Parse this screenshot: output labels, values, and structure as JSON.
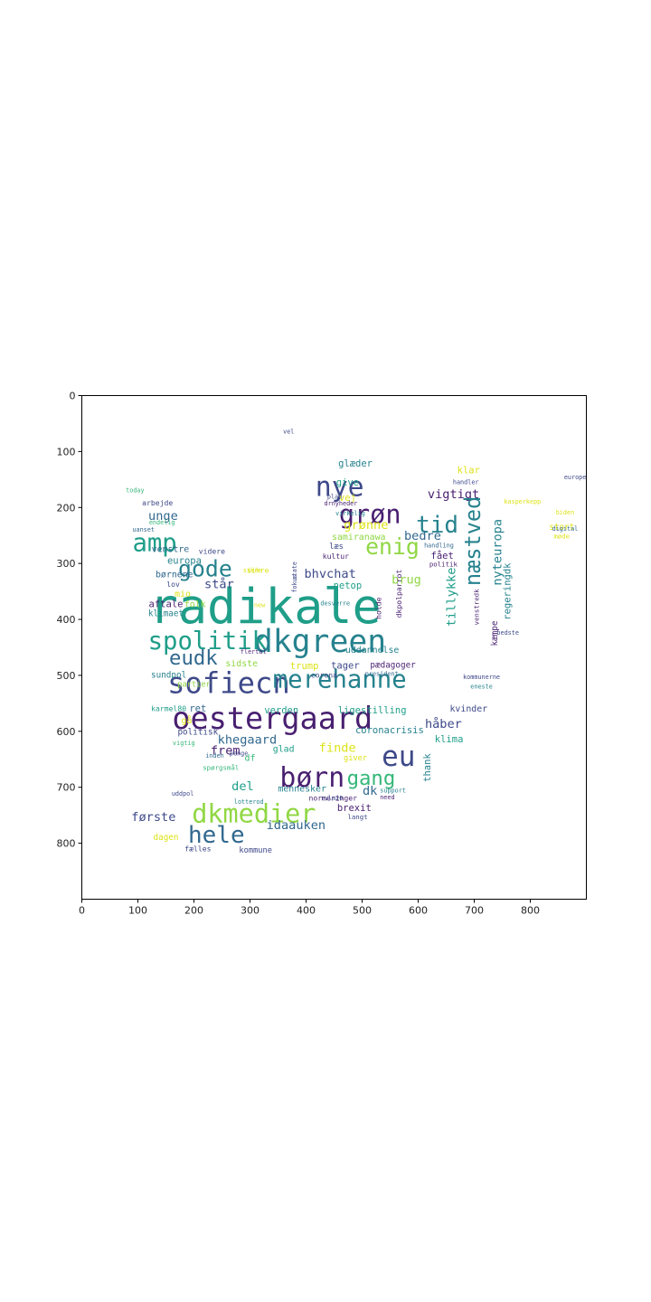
{
  "axes": {
    "x_ticks": [
      "0",
      "100",
      "200",
      "300",
      "400",
      "500",
      "600",
      "700",
      "800"
    ],
    "y_ticks": [
      "0",
      "100",
      "200",
      "300",
      "400",
      "500",
      "600",
      "700",
      "800"
    ],
    "xlim": [
      0,
      900
    ],
    "ylim": [
      900,
      0
    ]
  },
  "colors": {
    "purple": "#481f70",
    "indigo": "#3e4989",
    "blue": "#31688e",
    "teal": "#26828e",
    "green": "#1f9e89",
    "lime": "#35b779",
    "yellowgreen": "#90d743",
    "yellow": "#dde318"
  },
  "words": [
    {
      "t": "radikale",
      "x": 327,
      "y": 383,
      "s": 86,
      "c": "green"
    },
    {
      "t": "dkgreen",
      "x": 425,
      "y": 442,
      "s": 56,
      "c": "teal"
    },
    {
      "t": "oestergaard",
      "x": 340,
      "y": 580,
      "s": 54,
      "c": "purple"
    },
    {
      "t": "sofiecn",
      "x": 262,
      "y": 517,
      "s": 52,
      "c": "indigo"
    },
    {
      "t": "merehanne",
      "x": 460,
      "y": 510,
      "s": 44,
      "c": "teal"
    },
    {
      "t": "nye",
      "x": 460,
      "y": 166,
      "s": 48,
      "c": "indigo"
    },
    {
      "t": "grøn",
      "x": 514,
      "y": 215,
      "s": 46,
      "c": "purple"
    },
    {
      "t": "spolitik",
      "x": 224,
      "y": 441,
      "s": 44,
      "c": "green"
    },
    {
      "t": "amp",
      "x": 130,
      "y": 266,
      "s": 44,
      "c": "green"
    },
    {
      "t": "eu",
      "x": 565,
      "y": 648,
      "s": 50,
      "c": "indigo"
    },
    {
      "t": "børn",
      "x": 411,
      "y": 685,
      "s": 48,
      "c": "purple"
    },
    {
      "t": "dkmedier",
      "x": 307,
      "y": 750,
      "s": 46,
      "c": "yellowgreen"
    },
    {
      "t": "hele",
      "x": 240,
      "y": 787,
      "s": 42,
      "c": "blue"
    },
    {
      "t": "tid",
      "x": 634,
      "y": 233,
      "s": 42,
      "c": "teal"
    },
    {
      "t": "enig",
      "x": 554,
      "y": 272,
      "s": 40,
      "c": "yellowgreen"
    },
    {
      "t": "gode",
      "x": 220,
      "y": 312,
      "s": 40,
      "c": "teal"
    },
    {
      "t": "eudk",
      "x": 199,
      "y": 470,
      "s": 36,
      "c": "blue"
    },
    {
      "t": "gang",
      "x": 516,
      "y": 685,
      "s": 36,
      "c": "lime"
    },
    {
      "t": "grønne",
      "x": 507,
      "y": 232,
      "s": 22,
      "c": "yellow"
    },
    {
      "t": "vigtigt",
      "x": 663,
      "y": 177,
      "s": 22,
      "c": "purple"
    },
    {
      "t": "unge",
      "x": 145,
      "y": 216,
      "s": 22,
      "c": "blue"
    },
    {
      "t": "står",
      "x": 245,
      "y": 338,
      "s": 22,
      "c": "indigo"
    },
    {
      "t": "bhvchat",
      "x": 443,
      "y": 319,
      "s": 22,
      "c": "indigo"
    },
    {
      "t": "bedre",
      "x": 608,
      "y": 251,
      "s": 22,
      "c": "blue"
    },
    {
      "t": "brug",
      "x": 579,
      "y": 330,
      "s": 22,
      "c": "yellowgreen"
    },
    {
      "t": "khegaard",
      "x": 295,
      "y": 616,
      "s": 22,
      "c": "blue"
    },
    {
      "t": "finde",
      "x": 456,
      "y": 630,
      "s": 22,
      "c": "yellow"
    },
    {
      "t": "frem",
      "x": 256,
      "y": 635,
      "s": 22,
      "c": "purple"
    },
    {
      "t": "idaauken",
      "x": 382,
      "y": 768,
      "s": 22,
      "c": "blue"
    },
    {
      "t": "første",
      "x": 128,
      "y": 754,
      "s": 22,
      "c": "indigo"
    },
    {
      "t": "del",
      "x": 287,
      "y": 699,
      "s": 22,
      "c": "green"
    },
    {
      "t": "håber",
      "x": 645,
      "y": 587,
      "s": 22,
      "c": "indigo"
    },
    {
      "t": "dk",
      "x": 514,
      "y": 707,
      "s": 22,
      "c": "blue"
    },
    {
      "t": "nyteuropa",
      "x": 742,
      "y": 280,
      "s": 22,
      "c": "teal"
    },
    {
      "t": "næstved",
      "x": 700,
      "y": 260,
      "s": 38,
      "c": "teal"
    },
    {
      "t": "tillykke",
      "x": 660,
      "y": 360,
      "s": 22,
      "c": "green"
    },
    {
      "t": "glæder",
      "x": 488,
      "y": 122,
      "s": 17,
      "c": "teal"
    },
    {
      "t": "give",
      "x": 474,
      "y": 156,
      "s": 17,
      "c": "green"
    },
    {
      "t": "vej",
      "x": 474,
      "y": 183,
      "s": 17,
      "c": "yellow"
    },
    {
      "t": "klar",
      "x": 690,
      "y": 134,
      "s": 17,
      "c": "yellow"
    },
    {
      "t": "samiranawa",
      "x": 494,
      "y": 253,
      "s": 16,
      "c": "yellowgreen"
    },
    {
      "t": "læs",
      "x": 454,
      "y": 270,
      "s": 14,
      "c": "indigo"
    },
    {
      "t": "fået",
      "x": 643,
      "y": 287,
      "s": 17,
      "c": "purple"
    },
    {
      "t": "politik",
      "x": 645,
      "y": 302,
      "s": 12,
      "c": "purple"
    },
    {
      "t": "netop",
      "x": 474,
      "y": 340,
      "s": 17,
      "c": "green"
    },
    {
      "t": "europa",
      "x": 183,
      "y": 296,
      "s": 17,
      "c": "teal"
    },
    {
      "t": "venstre",
      "x": 158,
      "y": 275,
      "s": 16,
      "c": "blue"
    },
    {
      "t": "børnene",
      "x": 165,
      "y": 320,
      "s": 16,
      "c": "blue"
    },
    {
      "t": "aftale",
      "x": 150,
      "y": 373,
      "s": 17,
      "c": "purple"
    },
    {
      "t": "klimaet",
      "x": 150,
      "y": 390,
      "s": 15,
      "c": "teal"
    },
    {
      "t": "mio",
      "x": 180,
      "y": 355,
      "s": 16,
      "c": "yellow"
    },
    {
      "t": "folk",
      "x": 202,
      "y": 373,
      "s": 16,
      "c": "yellowgreen"
    },
    {
      "t": "sidste",
      "x": 285,
      "y": 479,
      "s": 16,
      "c": "yellowgreen"
    },
    {
      "t": "sundpol",
      "x": 155,
      "y": 500,
      "s": 15,
      "c": "teal"
    },
    {
      "t": "partier",
      "x": 200,
      "y": 516,
      "s": 14,
      "c": "yellowgreen"
    },
    {
      "t": "trump",
      "x": 397,
      "y": 484,
      "s": 17,
      "c": "yellow"
    },
    {
      "t": "tager",
      "x": 470,
      "y": 483,
      "s": 17,
      "c": "indigo"
    },
    {
      "t": "pædagoger",
      "x": 555,
      "y": 482,
      "s": 15,
      "c": "purple"
    },
    {
      "t": "uddannelse",
      "x": 518,
      "y": 455,
      "s": 16,
      "c": "teal"
    },
    {
      "t": "ligestilling",
      "x": 518,
      "y": 563,
      "s": 17,
      "c": "green"
    },
    {
      "t": "verden",
      "x": 356,
      "y": 563,
      "s": 17,
      "c": "green"
    },
    {
      "t": "ret",
      "x": 207,
      "y": 560,
      "s": 17,
      "c": "blue"
    },
    {
      "t": "karmel80",
      "x": 155,
      "y": 560,
      "s": 13,
      "c": "green"
    },
    {
      "t": "gå",
      "x": 187,
      "y": 581,
      "s": 16,
      "c": "yellow"
    },
    {
      "t": "politisk",
      "x": 207,
      "y": 602,
      "s": 15,
      "c": "indigo"
    },
    {
      "t": "glad",
      "x": 360,
      "y": 632,
      "s": 16,
      "c": "green"
    },
    {
      "t": "df",
      "x": 300,
      "y": 648,
      "s": 16,
      "c": "lime"
    },
    {
      "t": "kvinder",
      "x": 690,
      "y": 560,
      "s": 16,
      "c": "indigo"
    },
    {
      "t": "klima",
      "x": 655,
      "y": 615,
      "s": 17,
      "c": "green"
    },
    {
      "t": "coronacrisis",
      "x": 549,
      "y": 599,
      "s": 17,
      "c": "teal"
    },
    {
      "t": "thank",
      "x": 617,
      "y": 665,
      "s": 17,
      "c": "teal"
    },
    {
      "t": "giver",
      "x": 488,
      "y": 648,
      "s": 14,
      "c": "yellow"
    },
    {
      "t": "mennesker",
      "x": 393,
      "y": 703,
      "s": 16,
      "c": "teal"
    },
    {
      "t": "normeringer",
      "x": 448,
      "y": 720,
      "s": 13,
      "c": "purple"
    },
    {
      "t": "brexit",
      "x": 486,
      "y": 738,
      "s": 17,
      "c": "purple"
    },
    {
      "t": "langt",
      "x": 492,
      "y": 754,
      "s": 12,
      "c": "indigo"
    },
    {
      "t": "kommune",
      "x": 310,
      "y": 813,
      "s": 14,
      "c": "indigo"
    },
    {
      "t": "dagen",
      "x": 150,
      "y": 790,
      "s": 15,
      "c": "yellow"
    },
    {
      "t": "fælles",
      "x": 207,
      "y": 810,
      "s": 13,
      "c": "indigo"
    },
    {
      "t": "regeringdk",
      "x": 760,
      "y": 350,
      "s": 17,
      "c": "teal"
    },
    {
      "t": "kæmpe",
      "x": 737,
      "y": 425,
      "s": 15,
      "c": "purple"
    },
    {
      "t": "venstredk",
      "x": 705,
      "y": 378,
      "s": 12,
      "c": "purple"
    },
    {
      "t": "stort",
      "x": 856,
      "y": 236,
      "s": 15,
      "c": "yellow"
    },
    {
      "t": "arbejde",
      "x": 135,
      "y": 192,
      "s": 13,
      "c": "indigo"
    },
    {
      "t": "videre",
      "x": 232,
      "y": 279,
      "s": 13,
      "c": "indigo"
    },
    {
      "t": "lov",
      "x": 163,
      "y": 338,
      "s": 13,
      "c": "indigo"
    },
    {
      "t": "sikre",
      "x": 314,
      "y": 313,
      "s": 13,
      "c": "yellow"
    },
    {
      "t": "corona",
      "x": 432,
      "y": 500,
      "s": 13,
      "c": "indigo"
    },
    {
      "t": "desværre",
      "x": 452,
      "y": 372,
      "s": 11,
      "c": "teal"
    },
    {
      "t": "kultur",
      "x": 453,
      "y": 288,
      "s": 13,
      "c": "purple"
    },
    {
      "t": "holde",
      "x": 530,
      "y": 380,
      "s": 13,
      "c": "purple"
    },
    {
      "t": "dkpolparrot",
      "x": 566,
      "y": 354,
      "s": 13,
      "c": "purple"
    },
    {
      "t": "handling",
      "x": 637,
      "y": 268,
      "s": 11,
      "c": "blue"
    },
    {
      "t": "møde",
      "x": 856,
      "y": 252,
      "s": 12,
      "c": "yellow"
    },
    {
      "t": "digital",
      "x": 862,
      "y": 238,
      "s": 11,
      "c": "blue"
    },
    {
      "t": "today",
      "x": 95,
      "y": 170,
      "s": 11,
      "c": "lime"
    },
    {
      "t": "endelig",
      "x": 143,
      "y": 227,
      "s": 11,
      "c": "lime"
    },
    {
      "t": "uanset",
      "x": 110,
      "y": 240,
      "s": 11,
      "c": "blue"
    },
    {
      "t": "spørgsmål",
      "x": 248,
      "y": 666,
      "s": 12,
      "c": "lime"
    },
    {
      "t": "sikre",
      "x": 304,
      "y": 313,
      "s": 11,
      "c": "yellow"
    },
    {
      "t": "uddpol",
      "x": 180,
      "y": 712,
      "s": 11,
      "c": "indigo"
    },
    {
      "t": "support",
      "x": 555,
      "y": 706,
      "s": 11,
      "c": "teal"
    },
    {
      "t": "need",
      "x": 545,
      "y": 718,
      "s": 11,
      "c": "purple"
    },
    {
      "t": "rvlm20",
      "x": 446,
      "y": 720,
      "s": 11,
      "c": "indigo"
    },
    {
      "t": "europe",
      "x": 880,
      "y": 146,
      "s": 11,
      "c": "indigo"
    },
    {
      "t": "biden",
      "x": 862,
      "y": 209,
      "s": 11,
      "c": "yellow"
    },
    {
      "t": "plan",
      "x": 451,
      "y": 181,
      "s": 11,
      "c": "indigo"
    },
    {
      "t": "drnyheder",
      "x": 462,
      "y": 193,
      "s": 11,
      "c": "purple"
    },
    {
      "t": "virkelig",
      "x": 479,
      "y": 211,
      "s": 11,
      "c": "teal"
    },
    {
      "t": "handler",
      "x": 685,
      "y": 155,
      "s": 11,
      "c": "indigo"
    },
    {
      "t": "kasperkepp",
      "x": 786,
      "y": 190,
      "s": 11,
      "c": "yellow"
    },
    {
      "t": "bedste",
      "x": 760,
      "y": 424,
      "s": 11,
      "c": "indigo"
    },
    {
      "t": "state",
      "x": 380,
      "y": 313,
      "s": 11,
      "c": "indigo"
    },
    {
      "t": "fokus",
      "x": 380,
      "y": 336,
      "s": 11,
      "c": "indigo"
    },
    {
      "t": "new",
      "x": 317,
      "y": 375,
      "s": 11,
      "c": "yellow"
    },
    {
      "t": "vigtig",
      "x": 182,
      "y": 621,
      "s": 11,
      "c": "lime"
    },
    {
      "t": "inden",
      "x": 237,
      "y": 644,
      "s": 11,
      "c": "blue"
    },
    {
      "t": "penge",
      "x": 280,
      "y": 640,
      "s": 11,
      "c": "indigo"
    },
    {
      "t": "flertal",
      "x": 306,
      "y": 458,
      "s": 11,
      "c": "purple"
    },
    {
      "t": "kommunerne",
      "x": 713,
      "y": 503,
      "s": 11,
      "c": "indigo"
    },
    {
      "t": "eneste",
      "x": 713,
      "y": 520,
      "s": 11,
      "c": "teal"
    },
    {
      "t": "president",
      "x": 535,
      "y": 498,
      "s": 11,
      "c": "blue"
    },
    {
      "t": "vel",
      "x": 369,
      "y": 65,
      "s": 11,
      "c": "indigo"
    },
    {
      "t": "lotterod",
      "x": 298,
      "y": 726,
      "s": 11,
      "c": "teal"
    }
  ]
}
